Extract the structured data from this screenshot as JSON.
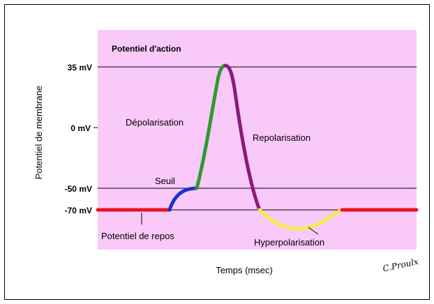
{
  "title": "Potentiel d'action",
  "y_axis_label": "Potentiel de membrane",
  "x_axis_label": "Temps (msec)",
  "levels": [
    "35 mV",
    "0 mV",
    "-50 mV",
    "-70 mV"
  ],
  "phases": {
    "depolarisation": "Dépolarisation",
    "repolarisation": "Repolarisation",
    "threshold": "Seuil",
    "rest": "Potentiel de repos",
    "hyperpolarisation": "Hyperpolarisation"
  },
  "signature": "C.Proulx"
}
